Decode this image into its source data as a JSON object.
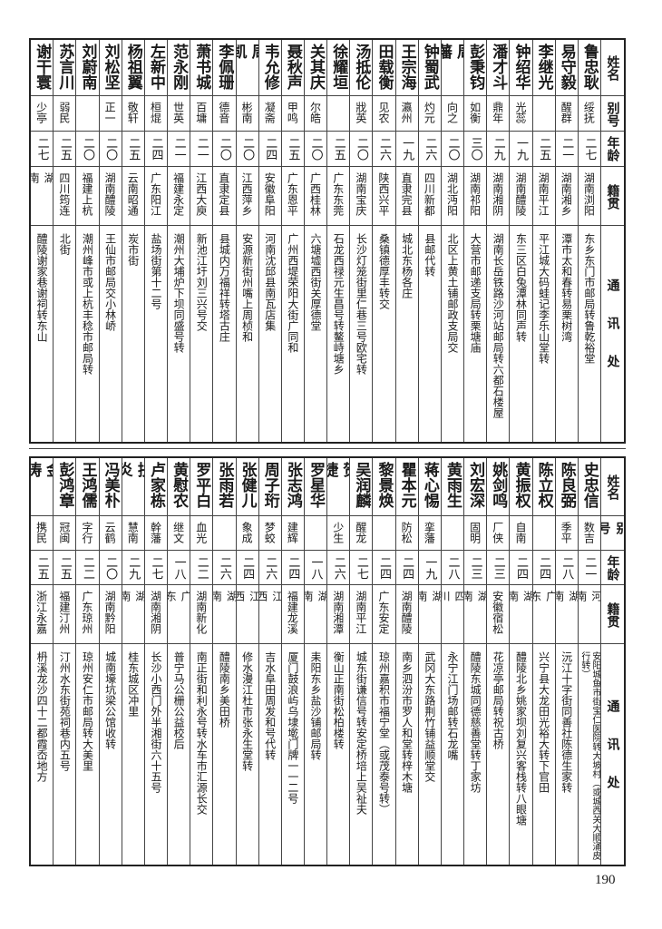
{
  "headers": {
    "name": "姓名",
    "alias": "别号",
    "age": "年龄",
    "native": "籍贯",
    "address": "通讯处"
  },
  "top_table": [
    {
      "name": "鲁忠耿",
      "alias": "绥抚",
      "age": "二七",
      "native": "湖南浏阳",
      "address": "东乡东门市邮局转鲁乾裕堂"
    },
    {
      "name": "易守毅",
      "alias": "醒群",
      "age": "二一",
      "native": "湖南湘乡",
      "address": "潭市太和春转易栗树湾"
    },
    {
      "name": "李继光",
      "alias": "",
      "age": "二五",
      "native": "湖南平江",
      "address": "平江城大码蛙记李乐山堂转"
    },
    {
      "name": "钟绍华",
      "alias": "光蕊",
      "age": "一九",
      "native": "湖南醴陵",
      "address": "东三区白兔潭林同声转"
    },
    {
      "name": "潘才斗",
      "alias": "鼎年",
      "age": "二九",
      "native": "湖南湘阴",
      "address": "湖南长岳铁路沙河站邮局转六都石楼屋"
    },
    {
      "name": "彭秉钧",
      "alias": "如衡",
      "age": "三〇",
      "native": "湖南祁阳",
      "address": "大营市邮递支局转栗塘庙"
    },
    {
      "name": "周藩",
      "alias": "向之",
      "age": "二〇",
      "native": "湖北沔阳",
      "address": "北区上黄土铺邮政支局交"
    },
    {
      "name": "钟蜀武",
      "alias": "灼元",
      "age": "二六",
      "native": "四川新都",
      "address": "县邮代转"
    },
    {
      "name": "王宗海",
      "alias": "瀛州",
      "age": "一九",
      "native": "直隶完县",
      "address": "城北东杨各庄"
    },
    {
      "name": "田载衡",
      "alias": "见农",
      "age": "二六",
      "native": "陕西兴平",
      "address": "桑镇德厚丰转交"
    },
    {
      "name": "汤抵伦",
      "alias": "戕英",
      "age": "二〇",
      "native": "湖南宝庆",
      "address": "长沙灯笼街里仁巷三号欧宅转"
    },
    {
      "name": "徐耀垣",
      "alias": "",
      "age": "二五",
      "native": "广东东莞",
      "address": "石龙西禄元生昌号转鳌峙塘乡"
    },
    {
      "name": "关其庆",
      "alias": "尔皓",
      "age": "二〇",
      "native": "广西桂林",
      "address": "六塘墟西街关厚德堂"
    },
    {
      "name": "聂秋声",
      "alias": "甲鸣",
      "age": "二五",
      "native": "广东恩平",
      "address": "广州西堤荣阳大街广同和"
    },
    {
      "name": "韦允修",
      "alias": "凝斋",
      "age": "二四",
      "native": "安徽阜阳",
      "address": "河南沈邱县南瓦店集"
    },
    {
      "name": "周凯",
      "alias": "彬南",
      "age": "二〇",
      "native": "江西萍乡",
      "address": "安源新街州嘴上周桢和"
    },
    {
      "name": "李佩珊",
      "alias": "德音",
      "age": "二〇",
      "native": "直隶定县",
      "address": "县城内万福祥转塔古庄"
    },
    {
      "name": "萧书城",
      "alias": "百墉",
      "age": "二一",
      "native": "江西大庾",
      "address": "新池江圩刘三兴号交"
    },
    {
      "name": "范永刚",
      "alias": "世英",
      "age": "二一",
      "native": "福建永定",
      "address": "潮州大埔炉下坝同盛号转"
    },
    {
      "name": "左新中",
      "alias": "桓焜",
      "age": "二四",
      "native": "广东阳江",
      "address": "盐场街第十二号"
    },
    {
      "name": "杨祖翼",
      "alias": "敬轩",
      "age": "二五",
      "native": "云南昭通",
      "address": "炭市街"
    },
    {
      "name": "刘松坚",
      "alias": "正一",
      "age": "二〇",
      "native": "湖南醴陵",
      "address": "王仙市邮局交小林峤"
    },
    {
      "name": "刘蔚南",
      "alias": "",
      "age": "二〇",
      "native": "福建上杭",
      "address": "潮州峰市或上杭丰稔市邮局转"
    },
    {
      "name": "苏言川",
      "alias": "弱民",
      "age": "二五",
      "native": "四川筠连",
      "address": "北街"
    },
    {
      "name": "谢干寰",
      "alias": "少亭",
      "age": "二七",
      "native": "湖南",
      "address": "醴陵谢家巷谢祠转东山"
    }
  ],
  "bottom_table": [
    {
      "name": "史忠信",
      "alias": "数吉",
      "age": "二一",
      "native": "河南",
      "address": "安阳城鱼市街宝仁医院转大坡村（或城西关大顺涌皮行转）"
    },
    {
      "name": "陈良弼",
      "alias": "季平",
      "age": "二八",
      "native": "湖南",
      "address": "沅江十字街同善社陈德生家转"
    },
    {
      "name": "陈立权",
      "alias": "",
      "age": "二四",
      "native": "广东",
      "address": "兴宁县大龙田光裕大转下官田"
    },
    {
      "name": "黄振权",
      "alias": "自南",
      "age": "二四",
      "native": "湖南",
      "address": "醴陵北乡姚家坝刘复兴客栈转八眼塘"
    },
    {
      "name": "姚剑鸣",
      "alias": "厂侠",
      "age": "二三",
      "native": "安徽宿松",
      "address": "花凉亭邮局转祝古桥"
    },
    {
      "name": "刘宏深",
      "alias": "固明",
      "age": "二三",
      "native": "湖南",
      "address": "醴陵东城同德慈善堂转丁家坊"
    },
    {
      "name": "黄雨生",
      "alias": "",
      "age": "二八",
      "native": "四川",
      "address": "永宁江门场邮转石龙嘴"
    },
    {
      "name": "蒋心惕",
      "alias": "挛藩",
      "age": "一九",
      "native": "湖南",
      "address": "武冈大东路荆竹铺益顺堂交"
    },
    {
      "name": "瞿本元",
      "alias": "防松",
      "age": "二四",
      "native": "湖南醴陵",
      "address": "南乡泗汾市罗人和堂转梓木塘"
    },
    {
      "name": "黎景焕",
      "alias": "",
      "age": "二四",
      "native": "广东安定",
      "address": "琼州嘉积市福宁堂（或茂泰号转）"
    },
    {
      "name": "吴润麟",
      "alias": "醒龙",
      "age": "二七",
      "native": "湖南平江",
      "address": "城东街谦信号转安定桥培上吴祉夫"
    },
    {
      "name": "贺捷",
      "alias": "少生",
      "age": "二六",
      "native": "湖南湘潭",
      "address": "衡山正南街松柏楼转"
    },
    {
      "name": "罗星华",
      "alias": "",
      "age": "一八",
      "native": "湖南",
      "address": "耒阳东乡盐沙铺邮局转"
    },
    {
      "name": "张志鸿",
      "alias": "建辉",
      "age": "二四",
      "native": "福建龙溪",
      "address": "厦门鼓浪屿乌埭墘门牌一一二号"
    },
    {
      "name": "周子珩",
      "alias": "梦蛟",
      "age": "二六",
      "native": "江西",
      "address": "吉水阜田周发和号代转"
    },
    {
      "name": "张健儿",
      "alias": "象成",
      "age": "二四",
      "native": "江西",
      "address": "修水漫江杜市张永生堂转"
    },
    {
      "name": "张雨若",
      "alias": "",
      "age": "二六",
      "native": "湖南",
      "address": "醴陵南乡美田桥"
    },
    {
      "name": "罗平白",
      "alias": "血光",
      "age": "二二",
      "native": "湖南新化",
      "address": "南正街和利永号转水车市汇源长交"
    },
    {
      "name": "黄慰农",
      "alias": "继文",
      "age": "一八",
      "native": "广东",
      "address": "普宁马公栅公益校后"
    },
    {
      "name": "卢家栋",
      "alias": "幹藩",
      "age": "二七",
      "native": "湖南湘阴",
      "address": "长沙小西门外半湘街六十五号"
    },
    {
      "name": "扶炎",
      "alias": "慧南",
      "age": "二九",
      "native": "湖南",
      "address": "桂东城区冲里"
    },
    {
      "name": "冯美朴",
      "alias": "云鹤",
      "age": "二〇",
      "native": "湖南黔阳",
      "address": "城南壕坑梁公馆收转"
    },
    {
      "name": "王鸿儒",
      "alias": "字行",
      "age": "二二",
      "native": "广东琼州",
      "address": "琼州安仁市邮局转大美里"
    },
    {
      "name": "彭鸿章",
      "alias": "冠闽",
      "age": "二五",
      "native": "福建汀州",
      "address": "汀州水东街苑祠巷内五号"
    },
    {
      "name": "金涛",
      "alias": "携民",
      "age": "二五",
      "native": "浙江永嘉",
      "address": "枬溪龙沙四十二都霞岙地方"
    }
  ],
  "page_number": "190"
}
